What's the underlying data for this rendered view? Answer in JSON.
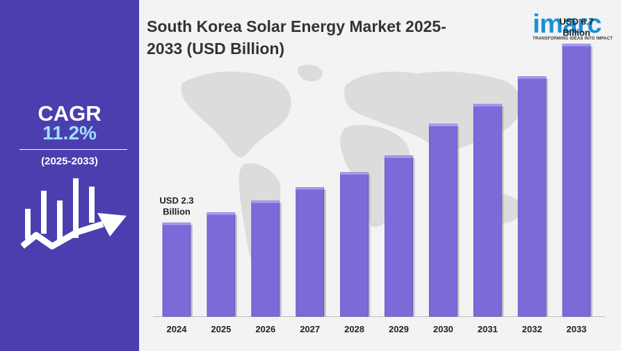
{
  "header": {
    "title_line1": "South Korea Solar Energy Market 2025-",
    "title_line2": "2033 (USD Billion)"
  },
  "logo": {
    "word": "imarc",
    "tagline": "TRANSFORMING IDEAS INTO IMPACT",
    "color": "#1a8fd8"
  },
  "sidebar": {
    "cagr_label": "CAGR",
    "cagr_value": "11.2%",
    "period": "(2025-2033)",
    "icon": "growth-chart-arrow-icon",
    "background": "#4b3fb0"
  },
  "chart_data": {
    "type": "bar",
    "title": "South Korea Solar Energy Market 2025-2033 (USD Billion)",
    "categories": [
      "2024",
      "2025",
      "2026",
      "2027",
      "2028",
      "2029",
      "2030",
      "2031",
      "2032",
      "2033"
    ],
    "values": [
      2.3,
      2.55,
      2.84,
      3.17,
      3.54,
      3.95,
      4.73,
      5.22,
      5.9,
      6.7
    ],
    "annotations": [
      {
        "category": "2024",
        "line1": "USD 2.3",
        "line2": "Billion"
      },
      {
        "category": "2033",
        "line1": "USD 6.7",
        "line2": "Billion"
      }
    ],
    "ylim": [
      0,
      7.0
    ],
    "bar_color": "#7b6ad8",
    "grid": false,
    "legend": "none"
  }
}
